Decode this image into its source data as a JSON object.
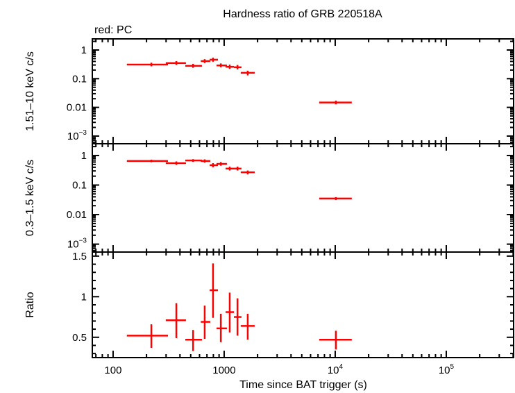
{
  "chart_data": {
    "type": "scatter",
    "title": "Hardness ratio of GRB 220518A",
    "subtitle": "red: PC",
    "xlabel": "Time since BAT trigger (s)",
    "xscale": "log",
    "xlim": [
      65,
      404000
    ],
    "x_ticks": [
      {
        "v": 100,
        "label": "100"
      },
      {
        "v": 1000,
        "label": "1000"
      },
      {
        "v": 10000,
        "label": "10",
        "exp": "4"
      },
      {
        "v": 100000,
        "label": "10",
        "exp": "5"
      }
    ],
    "color": "#ff0000",
    "grid": false,
    "x": [
      221,
      371,
      525,
      668,
      794,
      933,
      1122,
      1318,
      1630,
      10140
    ],
    "xerr_low": [
      133,
      298,
      447,
      616,
      741,
      854,
      1030,
      1225,
      1410,
      7180
    ],
    "xerr_high": [
      312,
      453,
      631,
      750,
      879,
      1059,
      1225,
      1432,
      1884,
      14100
    ],
    "panels": [
      {
        "ylabel": "1.51–10 keV c/s",
        "yscale": "log",
        "ylim": [
          0.00054,
          2.44
        ],
        "y_ticks": [
          {
            "v": 1,
            "label": "1"
          },
          {
            "v": 0.1,
            "label": "0.1"
          },
          {
            "v": 0.01,
            "label": "0.01"
          },
          {
            "v": 0.001,
            "label": "10",
            "exp": "−3"
          }
        ],
        "y": [
          0.31,
          0.35,
          0.28,
          0.41,
          0.46,
          0.29,
          0.26,
          0.25,
          0.16,
          0.0148
        ],
        "y_low": [
          0.27,
          0.3,
          0.24,
          0.35,
          0.39,
          0.25,
          0.22,
          0.21,
          0.13,
          0.0127
        ],
        "y_high": [
          0.36,
          0.41,
          0.33,
          0.48,
          0.54,
          0.34,
          0.31,
          0.3,
          0.19,
          0.0172
        ]
      },
      {
        "ylabel": "0.3–1.5 keV c/s",
        "yscale": "log",
        "ylim": [
          0.00054,
          2.5
        ],
        "y_ticks": [
          {
            "v": 1,
            "label": "1"
          },
          {
            "v": 0.1,
            "label": "0.1"
          },
          {
            "v": 0.01,
            "label": "0.01"
          },
          {
            "v": 0.001,
            "label": "10",
            "exp": "−3"
          }
        ],
        "y": [
          0.65,
          0.55,
          0.68,
          0.65,
          0.47,
          0.52,
          0.36,
          0.36,
          0.27,
          0.035
        ],
        "y_low": [
          0.59,
          0.48,
          0.61,
          0.57,
          0.4,
          0.45,
          0.31,
          0.31,
          0.23,
          0.031
        ],
        "y_high": [
          0.72,
          0.63,
          0.75,
          0.74,
          0.55,
          0.6,
          0.42,
          0.42,
          0.31,
          0.039
        ]
      },
      {
        "ylabel": "Ratio",
        "yscale": "linear",
        "ylim": [
          0.25,
          1.55
        ],
        "y_ticks": [
          {
            "v": 0.5,
            "label": "0.5"
          },
          {
            "v": 1,
            "label": "1"
          },
          {
            "v": 1.5,
            "label": "1.5"
          }
        ],
        "y": [
          0.52,
          0.71,
          0.47,
          0.69,
          1.08,
          0.61,
          0.81,
          0.75,
          0.64,
          0.47
        ],
        "y_low": [
          0.37,
          0.49,
          0.33,
          0.48,
          0.74,
          0.44,
          0.56,
          0.52,
          0.47,
          0.35
        ],
        "y_high": [
          0.66,
          0.92,
          0.59,
          0.89,
          1.41,
          0.79,
          1.05,
          0.98,
          0.79,
          0.58
        ]
      }
    ]
  }
}
